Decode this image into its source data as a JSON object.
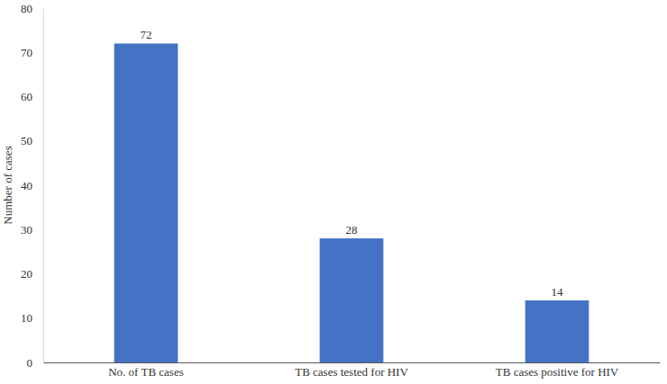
{
  "chart_data": {
    "type": "bar",
    "y_label": "Number of cases",
    "categories": [
      "No. of TB cases",
      "TB cases tested for HIV",
      "TB cases positive for HIV"
    ],
    "values": [
      72,
      28,
      14
    ],
    "color": "#4472c4",
    "ylim": [
      0,
      80
    ],
    "yticks": [
      0,
      10,
      20,
      30,
      40,
      50,
      60,
      70,
      80
    ],
    "grid": false,
    "data_labels": true
  }
}
